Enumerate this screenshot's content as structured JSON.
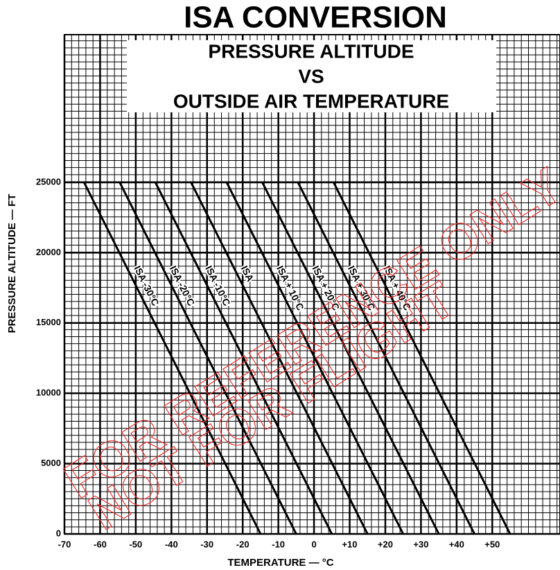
{
  "chart_data": {
    "type": "line",
    "title": "ISA CONVERSION",
    "subtitle": [
      "PRESSURE ALTITUDE",
      "VS",
      "OUTSIDE AIR TEMPERATURE"
    ],
    "xlabel": "TEMPERATURE — °C",
    "ylabel": "PRESSURE ALTITUDE — FT",
    "annotations": [
      "FOR REFERENCE ONLY",
      "NOT FOR FLIGHT"
    ],
    "xlim": [
      -70,
      69
    ],
    "ylim": [
      0,
      35500
    ],
    "xticks": [
      -70,
      -60,
      -50,
      -40,
      -30,
      -20,
      -10,
      0,
      {
        "value": 10,
        "label": "+10"
      },
      {
        "value": 20,
        "label": "+20"
      },
      {
        "value": 30,
        "label": "+30"
      },
      {
        "value": 40,
        "label": "+40"
      },
      {
        "value": 50,
        "label": "+50"
      }
    ],
    "yticks": [
      0,
      5000,
      10000,
      15000,
      20000,
      25000
    ],
    "grid": true,
    "series": [
      {
        "name": "ISA -30°C",
        "color": "#000000",
        "x": [
          -15,
          -64.5
        ],
        "values": [
          0,
          25000
        ]
      },
      {
        "name": "ISA -20°C",
        "color": "#000000",
        "x": [
          -5,
          -54.5
        ],
        "values": [
          0,
          25000
        ]
      },
      {
        "name": "ISA -10°C",
        "color": "#000000",
        "x": [
          5,
          -44.5
        ],
        "values": [
          0,
          25000
        ]
      },
      {
        "name": "ISA",
        "color": "#000000",
        "x": [
          15,
          -34.5
        ],
        "values": [
          0,
          25000
        ]
      },
      {
        "name": "ISA + 10°C",
        "color": "#000000",
        "x": [
          25,
          -24.5
        ],
        "values": [
          0,
          25000
        ]
      },
      {
        "name": "ISA + 20°C",
        "color": "#000000",
        "x": [
          35,
          -14.5
        ],
        "values": [
          0,
          25000
        ]
      },
      {
        "name": "ISA + 30°C",
        "color": "#000000",
        "x": [
          45,
          -4.5
        ],
        "values": [
          0,
          25000
        ]
      },
      {
        "name": "ISA + 40°C",
        "color": "#000000",
        "x": [
          55,
          5.5
        ],
        "values": [
          0,
          25000
        ]
      }
    ]
  }
}
